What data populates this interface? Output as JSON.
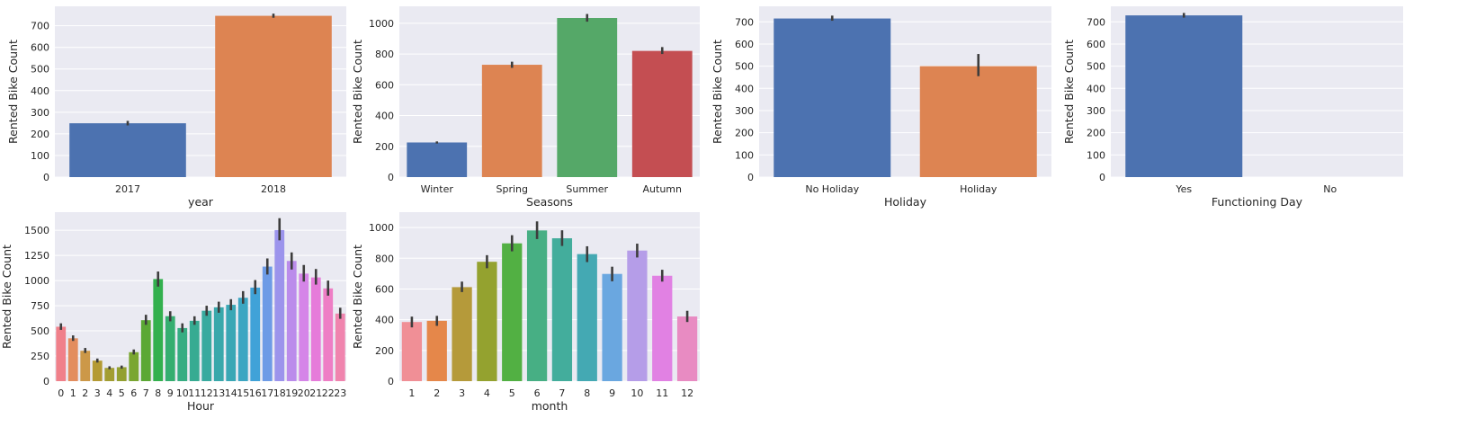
{
  "chart_data": [
    {
      "type": "bar",
      "xlabel": "year",
      "ylabel": "Rented Bike Count",
      "categories": [
        "2017",
        "2018"
      ],
      "values": [
        249,
        746
      ],
      "errors": [
        [
          239,
          260
        ],
        [
          737,
          756
        ]
      ],
      "colors": [
        "#4c72b0",
        "#dd8452"
      ],
      "ylim": [
        0,
        790
      ],
      "yticks": [
        0,
        100,
        200,
        300,
        400,
        500,
        600,
        700
      ],
      "grid": true
    },
    {
      "type": "bar",
      "xlabel": "Seasons",
      "ylabel": "Rented Bike Count",
      "categories": [
        "Winter",
        "Spring",
        "Summer",
        "Autumn"
      ],
      "values": [
        225,
        730,
        1034,
        820
      ],
      "errors": [
        [
          218,
          232
        ],
        [
          710,
          750
        ],
        [
          1010,
          1060
        ],
        [
          800,
          845
        ]
      ],
      "colors": [
        "#4c72b0",
        "#dd8452",
        "#55a868",
        "#c44e52"
      ],
      "ylim": [
        0,
        1110
      ],
      "yticks": [
        0,
        200,
        400,
        600,
        800,
        1000
      ],
      "grid": true
    },
    {
      "type": "bar",
      "xlabel": "Holiday",
      "ylabel": "Rented Bike Count",
      "categories": [
        "No Holiday",
        "Holiday"
      ],
      "values": [
        715,
        500
      ],
      "errors": [
        [
          705,
          728
        ],
        [
          455,
          555
        ]
      ],
      "colors": [
        "#4c72b0",
        "#dd8452"
      ],
      "ylim": [
        0,
        770
      ],
      "yticks": [
        0,
        100,
        200,
        300,
        400,
        500,
        600,
        700
      ],
      "grid": true
    },
    {
      "type": "bar",
      "xlabel": "Functioning Day",
      "ylabel": "Rented Bike Count",
      "categories": [
        "Yes",
        "No"
      ],
      "values": [
        729,
        0
      ],
      "errors": [
        [
          719,
          740
        ],
        null
      ],
      "colors": [
        "#4c72b0",
        "#dd8452"
      ],
      "ylim": [
        0,
        770
      ],
      "yticks": [
        0,
        100,
        200,
        300,
        400,
        500,
        600,
        700
      ],
      "grid": true
    },
    {
      "type": "bar",
      "xlabel": "Hour",
      "ylabel": "Rented Bike Count",
      "categories": [
        "0",
        "1",
        "2",
        "3",
        "4",
        "5",
        "6",
        "7",
        "8",
        "9",
        "10",
        "11",
        "12",
        "13",
        "14",
        "15",
        "16",
        "17",
        "18",
        "19",
        "20",
        "21",
        "22",
        "23"
      ],
      "values": [
        541,
        426,
        302,
        204,
        132,
        139,
        288,
        606,
        1015,
        646,
        528,
        600,
        700,
        734,
        759,
        829,
        930,
        1139,
        1502,
        1195,
        1069,
        1031,
        922,
        672
      ],
      "errors": [
        [
          510,
          575
        ],
        [
          400,
          455
        ],
        [
          280,
          330
        ],
        [
          185,
          225
        ],
        [
          118,
          148
        ],
        [
          124,
          155
        ],
        [
          265,
          315
        ],
        [
          560,
          660
        ],
        [
          940,
          1090
        ],
        [
          595,
          695
        ],
        [
          485,
          575
        ],
        [
          560,
          645
        ],
        [
          650,
          750
        ],
        [
          680,
          790
        ],
        [
          705,
          815
        ],
        [
          770,
          895
        ],
        [
          865,
          1005
        ],
        [
          1060,
          1220
        ],
        [
          1400,
          1620
        ],
        [
          1110,
          1280
        ],
        [
          990,
          1155
        ],
        [
          960,
          1115
        ],
        [
          850,
          1000
        ],
        [
          620,
          730
        ]
      ],
      "colors": [
        "#f0808a",
        "#e38d5e",
        "#cc9848",
        "#b49a33",
        "#a29d32",
        "#93a031",
        "#7aa631",
        "#5ba834",
        "#33b04e",
        "#35ae70",
        "#36ad82",
        "#37ab92",
        "#38aa9f",
        "#39a8ab",
        "#3aa7b5",
        "#3ca6c2",
        "#40a2d8",
        "#6d9be6",
        "#9c94ec",
        "#bb8ceb",
        "#d585e8",
        "#e67bda",
        "#ee7ec5",
        "#f084ae"
      ],
      "ylim": [
        0,
        1680
      ],
      "yticks": [
        0,
        250,
        500,
        750,
        1000,
        1250,
        1500
      ],
      "grid": true
    },
    {
      "type": "bar",
      "xlabel": "month",
      "ylabel": "Rented Bike Count",
      "categories": [
        "1",
        "2",
        "3",
        "4",
        "5",
        "6",
        "7",
        "8",
        "9",
        "10",
        "11",
        "12"
      ],
      "values": [
        385,
        393,
        612,
        777,
        897,
        981,
        930,
        827,
        698,
        850,
        686,
        421
      ],
      "errors": [
        [
          350,
          420
        ],
        [
          360,
          425
        ],
        [
          580,
          648
        ],
        [
          735,
          820
        ],
        [
          845,
          950
        ],
        [
          925,
          1040
        ],
        [
          880,
          982
        ],
        [
          775,
          878
        ],
        [
          650,
          745
        ],
        [
          805,
          895
        ],
        [
          648,
          725
        ],
        [
          385,
          458
        ]
      ],
      "colors": [
        "#f08f96",
        "#e5874a",
        "#b59a3a",
        "#94a22f",
        "#52b043",
        "#47af84",
        "#43ad9c",
        "#44a9b3",
        "#6aa7e0",
        "#b59de8",
        "#e181e3",
        "#e88bc2"
      ],
      "ylim": [
        0,
        1100
      ],
      "yticks": [
        0,
        200,
        400,
        600,
        800,
        1000
      ],
      "grid": true
    }
  ]
}
